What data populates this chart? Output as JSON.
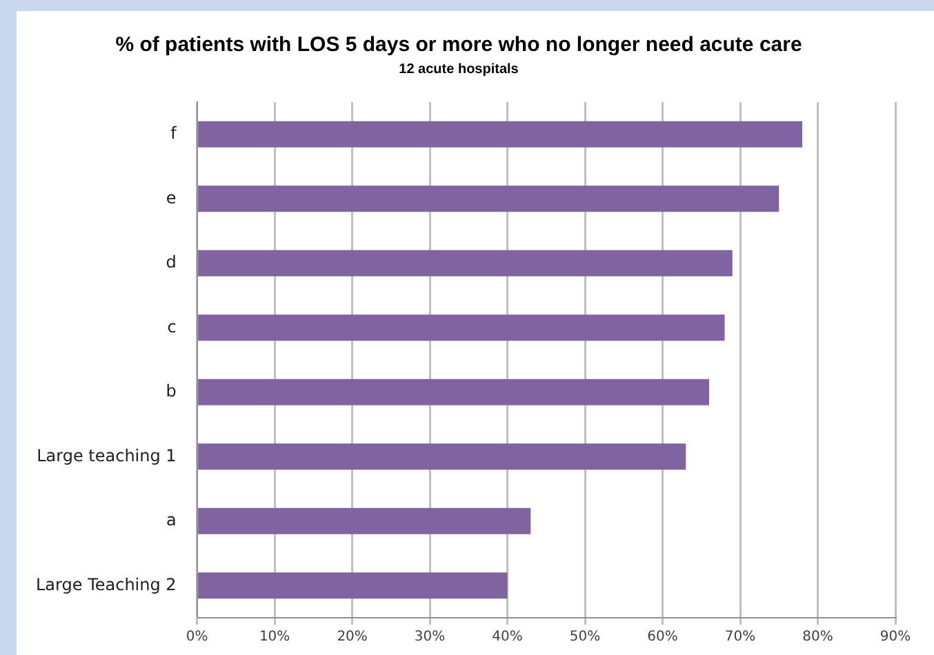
{
  "chart_data": {
    "type": "bar",
    "orientation": "horizontal",
    "title": "% of patients with LOS 5 days or more who no longer need acute care",
    "subtitle": "12 acute hospitals",
    "categories": [
      "f",
      "e",
      "d",
      "c",
      "b",
      "Large teaching 1",
      "a",
      "Large Teaching 2"
    ],
    "values": [
      78,
      75,
      69,
      68,
      66,
      63,
      43,
      40
    ],
    "color": "#8064a2",
    "xlim": [
      0,
      90
    ],
    "xticks": [
      {
        "value": 0,
        "label": "0%"
      },
      {
        "value": 10,
        "label": "10%"
      },
      {
        "value": 20,
        "label": "20%"
      },
      {
        "value": 30,
        "label": "30%"
      },
      {
        "value": 40,
        "label": "40%"
      },
      {
        "value": 50,
        "label": "50%"
      },
      {
        "value": 60,
        "label": "60%"
      },
      {
        "value": 70,
        "label": "70%"
      },
      {
        "value": 80,
        "label": "80%"
      },
      {
        "value": 90,
        "label": "90%"
      }
    ],
    "grid": "x",
    "legend": false
  }
}
